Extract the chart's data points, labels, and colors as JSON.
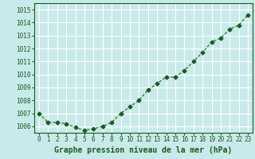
{
  "x": [
    0,
    1,
    2,
    3,
    4,
    5,
    6,
    7,
    8,
    9,
    10,
    11,
    12,
    13,
    14,
    15,
    16,
    17,
    18,
    19,
    20,
    21,
    22,
    23
  ],
  "y": [
    1007.0,
    1006.3,
    1006.3,
    1006.2,
    1005.9,
    1005.7,
    1005.8,
    1006.0,
    1006.3,
    1007.0,
    1007.5,
    1008.0,
    1008.8,
    1009.3,
    1009.8,
    1009.8,
    1010.3,
    1011.0,
    1011.7,
    1012.5,
    1012.8,
    1013.5,
    1013.8,
    1014.6
  ],
  "xlim": [
    -0.5,
    23.5
  ],
  "ylim": [
    1005.5,
    1015.5
  ],
  "yticks": [
    1006,
    1007,
    1008,
    1009,
    1010,
    1011,
    1012,
    1013,
    1014,
    1015
  ],
  "xticks": [
    0,
    1,
    2,
    3,
    4,
    5,
    6,
    7,
    8,
    9,
    10,
    11,
    12,
    13,
    14,
    15,
    16,
    17,
    18,
    19,
    20,
    21,
    22,
    23
  ],
  "xlabel": "Graphe pression niveau de la mer (hPa)",
  "line_color": "#1a5c1a",
  "marker": "D",
  "marker_size": 2.5,
  "bg_color": "#c8eaea",
  "grid_color": "#ffffff",
  "tick_label_color": "#1a5c1a",
  "xlabel_color": "#1a5c1a",
  "tick_fontsize": 5.5,
  "xlabel_fontsize": 7.0
}
